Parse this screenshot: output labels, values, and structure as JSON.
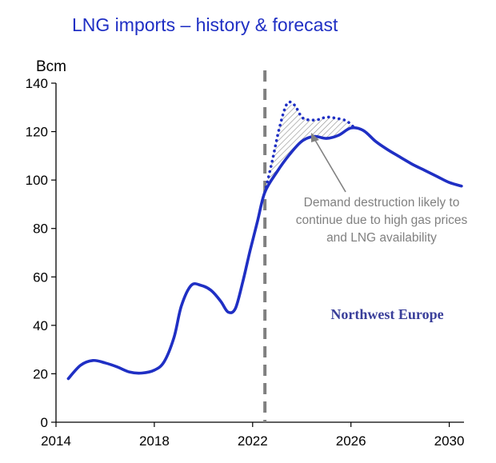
{
  "chart_data": {
    "type": "line",
    "title": "LNG imports – history & forecast",
    "ylabel": "Bcm",
    "xlabel": "",
    "xlim": [
      2014,
      2030.6
    ],
    "ylim": [
      0,
      140
    ],
    "x_ticks": [
      "2014",
      "2018",
      "2022",
      "2026",
      "2030"
    ],
    "y_ticks": [
      "0",
      "20",
      "40",
      "60",
      "80",
      "100",
      "120",
      "140"
    ],
    "grid": false,
    "legend": "none",
    "divider_x": 2022.5,
    "series": [
      {
        "style": "solid",
        "color": "#1f2fc4",
        "x": [
          2014.5,
          2015.0,
          2015.5,
          2016.0,
          2016.5,
          2017.0,
          2017.5,
          2018.0,
          2018.4,
          2018.8,
          2019.1,
          2019.5,
          2019.9,
          2020.3,
          2020.7,
          2021.0,
          2021.3,
          2021.6,
          2021.9,
          2022.2,
          2022.5,
          2023.0,
          2023.5,
          2024.0,
          2024.5,
          2025.0,
          2025.5,
          2026.0,
          2026.5,
          2027.0,
          2027.5,
          2028.0,
          2028.5,
          2029.0,
          2029.5,
          2030.0,
          2030.5
        ],
        "y": [
          18,
          23.5,
          25.5,
          24.5,
          22.8,
          20.7,
          20.3,
          21.5,
          25,
          35,
          48,
          56.5,
          56.5,
          54.5,
          50,
          45.5,
          47,
          58,
          71,
          83,
          95,
          103.5,
          110.5,
          116,
          118,
          117.2,
          118.5,
          121.5,
          120.5,
          116,
          112.5,
          109.5,
          106.5,
          104,
          101.5,
          99,
          97.5
        ]
      },
      {
        "style": "dotted",
        "color": "#1f2fc4",
        "x": [
          2022.5,
          2022.8,
          2023.1,
          2023.4,
          2023.7,
          2024.0,
          2024.3,
          2024.7,
          2025.0,
          2025.4,
          2025.8,
          2026.1
        ],
        "y": [
          95,
          108,
          122,
          131.5,
          131,
          126,
          124.8,
          125,
          126,
          125.5,
          124.5,
          122
        ]
      }
    ],
    "annotation": "Demand destruction likely to continue due to high gas prices and LNG availability",
    "annotation_lines": [
      "Demand destruction likely to",
      "continue due to high gas prices",
      "and LNG availability"
    ],
    "region_label": "Northwest Europe",
    "colors": {
      "line": "#1f2fc4",
      "divider": "#808080",
      "title": "#1f2fc4",
      "region_label": "#3a3f9a",
      "annotation": "#808080"
    }
  }
}
